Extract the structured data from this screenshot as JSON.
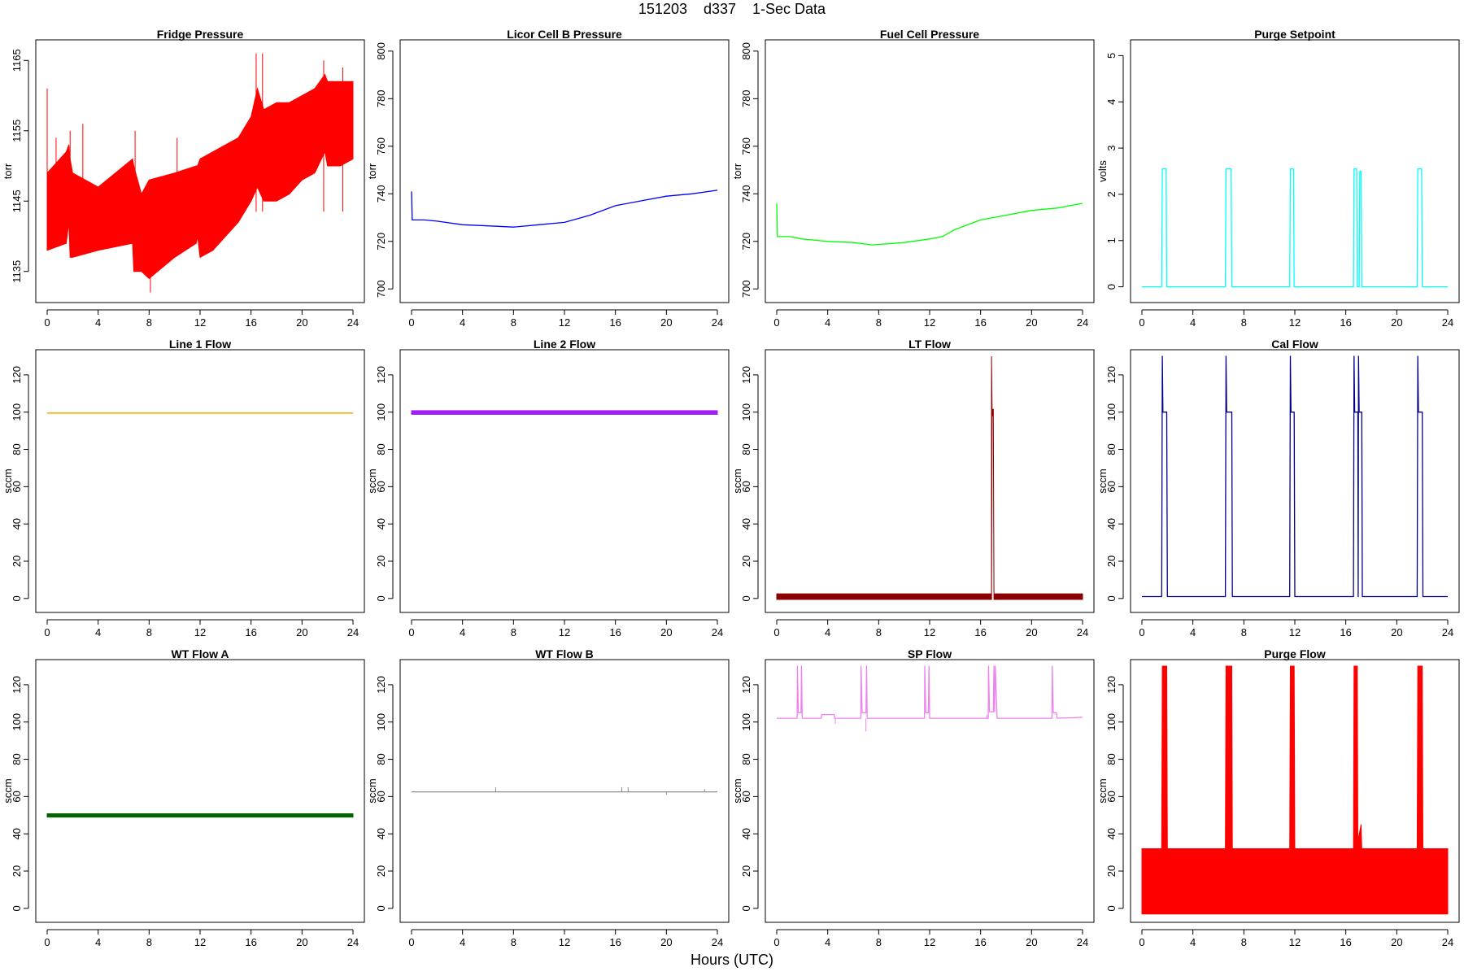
{
  "header": {
    "title": "151203    d337    1-Sec Data"
  },
  "footer": {
    "xlabel": "Hours (UTC)"
  },
  "chart_data": [
    {
      "type": "line",
      "title": "Fridge Pressure",
      "ylabel": "torr",
      "color": "#ff0000",
      "xlim": [
        0,
        24
      ],
      "ylim": [
        1131.5,
        1167
      ],
      "xticks": [
        0,
        4,
        8,
        12,
        16,
        20,
        24
      ],
      "yticks": [
        1135,
        1145,
        1155,
        1165
      ],
      "style": "band",
      "x": [
        0,
        1.5,
        1.7,
        1.8,
        2,
        4,
        6.7,
        6.8,
        7.4,
        8,
        10,
        11.7,
        11.8,
        12,
        13,
        14,
        15,
        16,
        16.5,
        17,
        18,
        19,
        20,
        21,
        21.8,
        22,
        23,
        24
      ],
      "min": [
        1138,
        1139,
        1142,
        1137,
        1137,
        1138,
        1139,
        1135,
        1135,
        1134,
        1137,
        1139,
        1140,
        1137,
        1138,
        1140,
        1142,
        1145,
        1147,
        1145,
        1145,
        1146,
        1148,
        1149,
        1152,
        1150,
        1150,
        1151
      ],
      "max": [
        1149,
        1152,
        1153,
        1151,
        1149,
        1147,
        1151,
        1150,
        1146,
        1148,
        1149,
        1150,
        1150,
        1151,
        1152,
        1153,
        1154,
        1157,
        1161,
        1158,
        1159,
        1159,
        1160,
        1161,
        1163,
        1162,
        1162,
        1162
      ],
      "spikes": [
        [
          0,
          1161
        ],
        [
          0.7,
          1154
        ],
        [
          1.8,
          1155
        ],
        [
          2.8,
          1156
        ],
        [
          6.9,
          1155
        ],
        [
          8.1,
          1132
        ],
        [
          10.2,
          1154
        ],
        [
          16.4,
          1166
        ],
        [
          16.9,
          1166
        ],
        [
          21.7,
          1165
        ],
        [
          23.2,
          1164
        ]
      ]
    },
    {
      "type": "line",
      "title": "Licor Cell B Pressure",
      "ylabel": "torr",
      "color": "#0000ff",
      "xlim": [
        0,
        24
      ],
      "ylim": [
        697,
        802
      ],
      "xticks": [
        0,
        4,
        8,
        12,
        16,
        20,
        24
      ],
      "yticks": [
        700,
        720,
        740,
        760,
        780,
        800
      ],
      "style": "line",
      "x": [
        0,
        0.05,
        0.1,
        1,
        2,
        4,
        6,
        8,
        10,
        12,
        13,
        14,
        16,
        18,
        20,
        22,
        24
      ],
      "y": [
        741,
        729,
        729,
        729,
        728.5,
        727,
        726.5,
        726,
        727,
        728,
        729.5,
        731,
        735,
        737,
        739,
        740,
        741.5
      ]
    },
    {
      "type": "line",
      "title": "Fuel Cell Pressure",
      "ylabel": "torr",
      "color": "#00ff00",
      "xlim": [
        0,
        24
      ],
      "ylim": [
        697,
        802
      ],
      "xticks": [
        0,
        4,
        8,
        12,
        16,
        20,
        24
      ],
      "yticks": [
        700,
        720,
        740,
        760,
        780,
        800
      ],
      "style": "line",
      "x": [
        0,
        0.05,
        0.1,
        1,
        2,
        4,
        6,
        7.5,
        10,
        12,
        13,
        14,
        16,
        18,
        20,
        22,
        24
      ],
      "y": [
        736,
        722,
        722,
        722,
        721,
        720,
        719.5,
        718.5,
        719.5,
        721,
        722,
        725,
        729,
        731,
        733,
        734,
        736
      ]
    },
    {
      "type": "line",
      "title": "Purge Setpoint",
      "ylabel": "volts",
      "color": "#00ffff",
      "xlim": [
        0,
        24
      ],
      "ylim": [
        -0.2,
        5.2
      ],
      "xticks": [
        0,
        4,
        8,
        12,
        16,
        20,
        24
      ],
      "yticks": [
        0,
        1,
        2,
        3,
        4,
        5
      ],
      "style": "line",
      "x": [
        0,
        1.55,
        1.6,
        1.9,
        1.95,
        6.55,
        6.6,
        7.0,
        7.05,
        11.6,
        11.65,
        11.9,
        11.95,
        16.6,
        16.65,
        16.85,
        16.9,
        17.05,
        17.1,
        17.2,
        17.25,
        21.6,
        21.65,
        21.95,
        22.0,
        24
      ],
      "y": [
        0,
        0,
        2.55,
        2.55,
        0,
        0,
        2.55,
        2.55,
        0,
        0,
        2.55,
        2.55,
        0,
        0,
        2.55,
        2.55,
        0,
        0,
        2.5,
        2.5,
        0,
        0,
        2.55,
        2.55,
        0,
        0
      ]
    },
    {
      "type": "line",
      "title": "Line 1 Flow",
      "ylabel": "sccm",
      "color": "#ffa500",
      "xlim": [
        0,
        24
      ],
      "ylim": [
        -4,
        130
      ],
      "xticks": [
        0,
        4,
        8,
        12,
        16,
        20,
        24
      ],
      "yticks": [
        0,
        20,
        40,
        60,
        80,
        100,
        120
      ],
      "style": "line",
      "width": 1.5,
      "x": [
        0,
        24
      ],
      "y": [
        99.5,
        99.5
      ]
    },
    {
      "type": "line",
      "title": "Line 2 Flow",
      "ylabel": "sccm",
      "color": "#a020f0",
      "xlim": [
        0,
        24
      ],
      "ylim": [
        -4,
        130
      ],
      "xticks": [
        0,
        4,
        8,
        12,
        16,
        20,
        24
      ],
      "yticks": [
        0,
        20,
        40,
        60,
        80,
        100,
        120
      ],
      "style": "band",
      "x": [
        0,
        24
      ],
      "min": [
        98.8,
        98.8
      ],
      "max": [
        100.8,
        100.8
      ]
    },
    {
      "type": "line",
      "title": "LT Flow",
      "ylabel": "sccm",
      "color": "#8b0000",
      "xlim": [
        0,
        24
      ],
      "ylim": [
        -4,
        130
      ],
      "xticks": [
        0,
        4,
        8,
        12,
        16,
        20,
        24
      ],
      "yticks": [
        0,
        20,
        40,
        60,
        80,
        100,
        120
      ],
      "style": "band",
      "x": [
        0,
        16.85,
        16.86,
        16.9,
        16.95,
        17.0,
        17.05,
        24
      ],
      "min": [
        -0.5,
        -0.5,
        0,
        98,
        98,
        98,
        -0.5,
        -0.5
      ],
      "max": [
        2.5,
        2.5,
        130,
        101.5,
        101.5,
        101.5,
        2.5,
        2.5
      ]
    },
    {
      "type": "line",
      "title": "Cal Flow",
      "ylabel": "sccm",
      "color": "#00008b",
      "color2": "#6b6bd9",
      "xlim": [
        0,
        24
      ],
      "ylim": [
        -4,
        130
      ],
      "xticks": [
        0,
        4,
        8,
        12,
        16,
        20,
        24
      ],
      "yticks": [
        0,
        20,
        40,
        60,
        80,
        100,
        120
      ],
      "style": "line",
      "x": [
        0,
        1.55,
        1.6,
        1.65,
        1.7,
        1.95,
        2.0,
        6.55,
        6.6,
        6.65,
        6.7,
        7.05,
        7.1,
        11.6,
        11.65,
        11.7,
        11.75,
        11.95,
        12.0,
        16.6,
        16.65,
        16.7,
        16.75,
        16.95,
        16.97,
        17.0,
        17.05,
        17.25,
        17.3,
        21.6,
        21.65,
        21.7,
        21.75,
        22.0,
        22.05,
        24
      ],
      "y": [
        1,
        1,
        130,
        100,
        100,
        100,
        1,
        1,
        130,
        100,
        100,
        100,
        1,
        1,
        130,
        100,
        100,
        100,
        1,
        1,
        130,
        100,
        100,
        100,
        1,
        130,
        100,
        100,
        1,
        1,
        130,
        100,
        100,
        100,
        1,
        1
      ]
    },
    {
      "type": "line",
      "title": "WT Flow A",
      "ylabel": "sccm",
      "color": "#006400",
      "xlim": [
        0,
        24
      ],
      "ylim": [
        -4,
        130
      ],
      "xticks": [
        0,
        4,
        8,
        12,
        16,
        20,
        24
      ],
      "yticks": [
        0,
        20,
        40,
        60,
        80,
        100,
        120
      ],
      "style": "band",
      "x": [
        0,
        24
      ],
      "min": [
        49,
        49
      ],
      "max": [
        50.8,
        50.8
      ]
    },
    {
      "type": "line",
      "title": "WT Flow B",
      "ylabel": "sccm",
      "color": "#8c8c8c",
      "xlim": [
        0,
        24
      ],
      "ylim": [
        -4,
        130
      ],
      "xticks": [
        0,
        4,
        8,
        12,
        16,
        20,
        24
      ],
      "yticks": [
        0,
        20,
        40,
        60,
        80,
        100,
        120
      ],
      "style": "line",
      "x": [
        0,
        24
      ],
      "y": [
        62.5,
        62.5
      ],
      "spikes": [
        [
          6.6,
          65
        ],
        [
          16.5,
          65
        ],
        [
          17,
          65
        ],
        [
          20,
          61
        ],
        [
          23,
          64
        ]
      ]
    },
    {
      "type": "line",
      "title": "SP Flow",
      "ylabel": "sccm",
      "color": "#ee82ee",
      "xlim": [
        0,
        24
      ],
      "ylim": [
        -4,
        130
      ],
      "xticks": [
        0,
        4,
        8,
        12,
        16,
        20,
        24
      ],
      "yticks": [
        0,
        20,
        40,
        60,
        80,
        100,
        120
      ],
      "style": "line",
      "x": [
        0,
        1.6,
        1.62,
        1.7,
        1.9,
        1.95,
        2.0,
        3.5,
        3.55,
        4.5,
        4.55,
        6.6,
        6.62,
        6.7,
        7.0,
        7.05,
        7.1,
        11.6,
        11.62,
        11.7,
        11.9,
        11.95,
        12.0,
        16.6,
        16.62,
        16.7,
        17.0,
        17.05,
        17.1,
        17.15,
        17.3,
        21.6,
        21.62,
        21.7,
        21.95,
        22.0,
        24
      ],
      "y": [
        102,
        102,
        130,
        105,
        105,
        130,
        102,
        102,
        104,
        104,
        102,
        102,
        130,
        105,
        105,
        130,
        102,
        102,
        130,
        105,
        105,
        130,
        102,
        102,
        130,
        105.5,
        105.5,
        130,
        105.5,
        130,
        102,
        102,
        130,
        105,
        105,
        102,
        102.5
      ],
      "spikes": [
        [
          7.0,
          95
        ],
        [
          4.6,
          99
        ],
        [
          16.5,
          104
        ]
      ]
    },
    {
      "type": "line",
      "title": "Purge Flow",
      "ylabel": "sccm",
      "color": "#ff0000",
      "xlim": [
        0,
        24
      ],
      "ylim": [
        -4,
        130
      ],
      "xticks": [
        0,
        4,
        8,
        12,
        16,
        20,
        24
      ],
      "yticks": [
        0,
        20,
        40,
        60,
        80,
        100,
        120
      ],
      "style": "band",
      "x": [
        0,
        1.55,
        1.6,
        1.95,
        2.0,
        6.55,
        6.6,
        7.05,
        7.1,
        11.6,
        11.65,
        11.95,
        12.0,
        16.6,
        16.65,
        16.9,
        16.95,
        17.2,
        17.25,
        21.6,
        21.65,
        22.0,
        22.05,
        24
      ],
      "min": [
        -3,
        -3,
        -3,
        -3,
        -3,
        -3,
        -3,
        -3,
        -3,
        -3,
        -3,
        -3,
        -3,
        -3,
        -3,
        -3,
        -3,
        -3,
        -3,
        -3,
        -3,
        -3,
        -3,
        -3
      ],
      "max": [
        32,
        32,
        130,
        130,
        32,
        32,
        130,
        130,
        32,
        32,
        130,
        130,
        32,
        32,
        130,
        130,
        36,
        45,
        32,
        32,
        130,
        130,
        32,
        32
      ]
    }
  ]
}
